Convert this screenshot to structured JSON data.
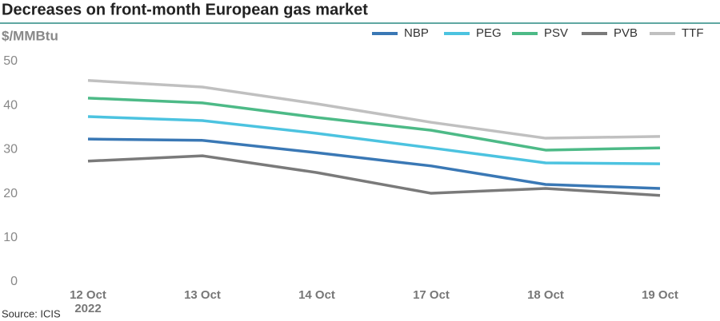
{
  "chart_data": {
    "type": "line",
    "title": "Decreases on front-month European gas market",
    "y_label": "$/MMBtu",
    "source": "Source: ICIS",
    "categories": [
      "12 Oct",
      "13 Oct",
      "14 Oct",
      "17 Oct",
      "18 Oct",
      "19 Oct"
    ],
    "first_category_year": "2022",
    "series": [
      {
        "name": "NBP",
        "color": "#3a78b5",
        "values": [
          32.4,
          32.1,
          29.3,
          26.3,
          22.1,
          21.2
        ]
      },
      {
        "name": "PEG",
        "color": "#4cc3e0",
        "values": [
          37.5,
          36.6,
          33.7,
          30.4,
          27.0,
          26.8
        ]
      },
      {
        "name": "PSV",
        "color": "#4dba87",
        "values": [
          41.7,
          40.6,
          37.3,
          34.4,
          29.9,
          30.4
        ]
      },
      {
        "name": "PVB",
        "color": "#7a7a7a",
        "values": [
          27.4,
          28.6,
          24.8,
          20.1,
          21.2,
          19.6
        ]
      },
      {
        "name": "TTF",
        "color": "#c0c0c0",
        "values": [
          45.7,
          44.2,
          40.4,
          36.2,
          32.6,
          33.0
        ]
      }
    ],
    "ylim": [
      0,
      50
    ],
    "yticks": [
      0,
      10,
      20,
      30,
      40,
      50
    ],
    "grid": false,
    "legend": "top-right"
  }
}
